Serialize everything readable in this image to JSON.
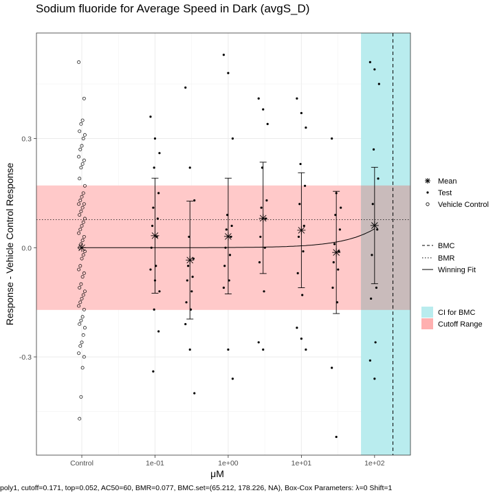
{
  "chart_data": {
    "type": "scatter",
    "title": "Sodium fluoride for Average Speed in Dark (avgS_D)",
    "xlabel": "μM",
    "ylabel": "Response - Vehicle Control Response",
    "x_ticks": [
      "Control",
      "1e-01",
      "1e+00",
      "1e+01",
      "1e+02"
    ],
    "y_ticks": [
      -0.3,
      0.0,
      0.3
    ],
    "ylim": [
      -0.57,
      0.59
    ],
    "grid": true,
    "footnote": "poly1, cutoff=0.171, top=0.052, AC50=60, BMR=0.077, BMC.set=(65.212, 178.226, NA), Box-Cox Parameters: λ=0 Shift=1",
    "legend": {
      "position": "right",
      "points": [
        "Mean",
        "Test",
        "Vehicle Control"
      ],
      "lines": [
        "BMC",
        "BMR",
        "Winning Fit"
      ],
      "fills": [
        "CI for BMC",
        "Cutoff Range"
      ]
    },
    "colors": {
      "ci_fill": "#b9ecee",
      "cutoff_fill": "#ffc9c9",
      "points": "#000000",
      "grid": "#ebebeb"
    },
    "cutoff": 0.171,
    "bmr": 0.077,
    "bmc": 178.226,
    "bmc_ci": [
      65.212,
      178.226
    ],
    "fit": {
      "model": "poly1",
      "top": 0.052,
      "max_conc": 100
    },
    "control_points": [
      0.51,
      0.41,
      0.35,
      0.34,
      0.32,
      0.31,
      0.3,
      0.28,
      0.27,
      0.25,
      0.24,
      0.23,
      0.22,
      0.19,
      0.17,
      0.15,
      0.14,
      0.13,
      0.12,
      0.12,
      0.11,
      0.1,
      0.09,
      0.08,
      0.07,
      0.06,
      0.05,
      0.04,
      0.03,
      0.02,
      0.01,
      0.0,
      -0.01,
      -0.02,
      -0.03,
      -0.05,
      -0.06,
      -0.07,
      -0.08,
      -0.1,
      -0.11,
      -0.12,
      -0.13,
      -0.14,
      -0.15,
      -0.16,
      -0.17,
      -0.19,
      -0.2,
      -0.21,
      -0.22,
      -0.24,
      -0.26,
      -0.27,
      -0.29,
      -0.3,
      -0.33,
      -0.41,
      -0.47
    ],
    "groups": [
      {
        "conc": 0.1,
        "mean": 0.033,
        "err_low": -0.125,
        "err_high": 0.191,
        "points": [
          0.36,
          0.3,
          0.26,
          0.22,
          0.15,
          0.11,
          0.08,
          0.06,
          0.03,
          0.0,
          -0.05,
          -0.06,
          -0.09,
          -0.12,
          -0.17,
          -0.23,
          -0.34
        ]
      },
      {
        "conc": 0.3,
        "mean": -0.034,
        "err_low": -0.196,
        "err_high": 0.128,
        "points": [
          0.44,
          0.22,
          0.13,
          0.03,
          -0.03,
          -0.05,
          -0.08,
          -0.09,
          -0.12,
          -0.15,
          -0.17,
          -0.21,
          -0.28,
          -0.4
        ]
      },
      {
        "conc": 1.0,
        "mean": 0.031,
        "err_low": -0.127,
        "err_high": 0.191,
        "points": [
          0.53,
          0.48,
          0.3,
          0.09,
          0.06,
          0.05,
          0.03,
          0.0,
          -0.02,
          -0.05,
          -0.09,
          -0.11,
          -0.28,
          -0.36
        ]
      },
      {
        "conc": 3.0,
        "mean": 0.081,
        "err_low": -0.071,
        "err_high": 0.235,
        "points": [
          0.41,
          0.38,
          0.34,
          0.22,
          0.13,
          0.11,
          0.08,
          0.03,
          0.0,
          -0.04,
          -0.12,
          -0.26,
          -0.28
        ]
      },
      {
        "conc": 10.0,
        "mean": 0.048,
        "err_low": -0.11,
        "err_high": 0.206,
        "points": [
          0.41,
          0.37,
          0.33,
          0.23,
          0.17,
          0.12,
          0.06,
          0.03,
          -0.01,
          -0.07,
          -0.13,
          -0.22,
          -0.25,
          -0.28
        ]
      },
      {
        "conc": 30.0,
        "mean": -0.013,
        "err_low": -0.181,
        "err_high": 0.155,
        "points": [
          0.3,
          0.15,
          0.11,
          0.09,
          0.05,
          0.01,
          -0.01,
          -0.04,
          -0.06,
          -0.11,
          -0.15,
          -0.33,
          -0.52
        ]
      },
      {
        "conc": 100.0,
        "mean": 0.061,
        "err_low": -0.099,
        "err_high": 0.221,
        "points": [
          0.51,
          0.49,
          0.45,
          0.27,
          0.19,
          0.12,
          0.05,
          -0.02,
          -0.11,
          -0.14,
          -0.26,
          -0.31,
          -0.36
        ]
      }
    ]
  }
}
